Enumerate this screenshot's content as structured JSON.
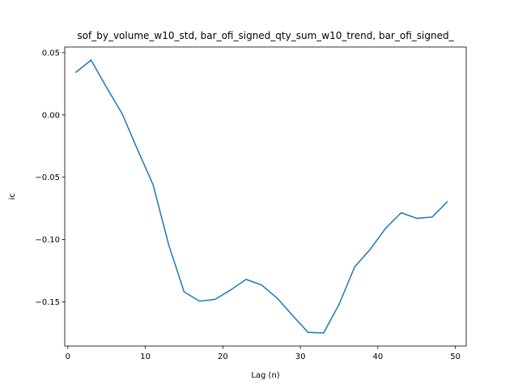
{
  "chart_data": {
    "type": "line",
    "title": "sof_by_volume_w10_std, bar_ofi_signed_qty_sum_w10_trend, bar_ofi_signed_",
    "xlabel": "Lag (n)",
    "ylabel": "ic",
    "xlim": [
      -0.4,
      51.4
    ],
    "ylim": [
      -0.1855,
      0.0545
    ],
    "xticks": [
      0,
      10,
      20,
      30,
      40,
      50
    ],
    "xtick_labels": [
      "0",
      "10",
      "20",
      "30",
      "40",
      "50"
    ],
    "yticks": [
      0.05,
      0.0,
      -0.05,
      -0.1,
      -0.15
    ],
    "ytick_labels": [
      "0.05",
      "0.00",
      "−0.05",
      "−0.10",
      "−0.15"
    ],
    "grid": false,
    "series": [
      {
        "color": "#1f77b4",
        "x": [
          1,
          3,
          5,
          7,
          9,
          11,
          13,
          15,
          17,
          19,
          21,
          23,
          25,
          27,
          29,
          31,
          33,
          35,
          37,
          39,
          41,
          43,
          45,
          47,
          49
        ],
        "y": [
          0.034,
          0.044,
          0.022,
          0.001,
          -0.028,
          -0.056,
          -0.104,
          -0.142,
          -0.1495,
          -0.148,
          -0.1405,
          -0.132,
          -0.1365,
          -0.147,
          -0.161,
          -0.1745,
          -0.175,
          -0.152,
          -0.122,
          -0.108,
          -0.091,
          -0.0785,
          -0.083,
          -0.082,
          -0.0695
        ]
      }
    ]
  }
}
